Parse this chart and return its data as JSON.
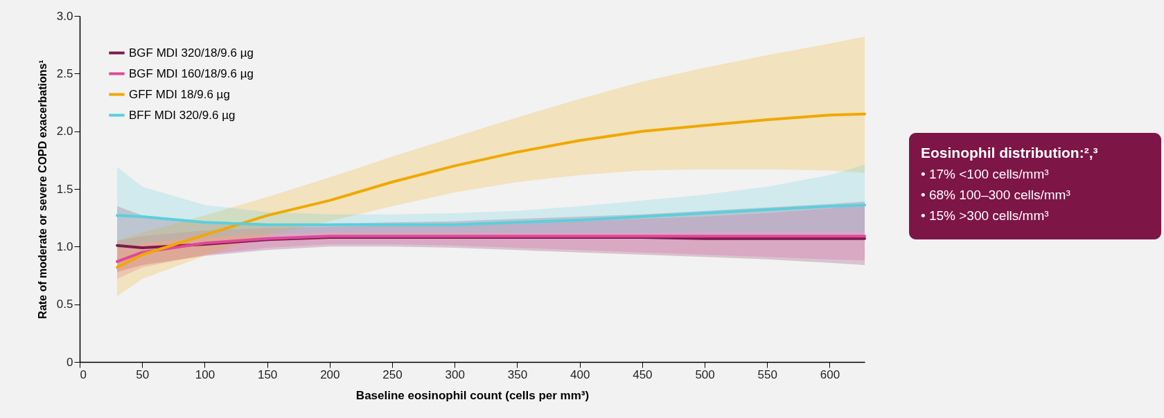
{
  "chart_data": {
    "type": "line",
    "xlabel": "Baseline eosinophil count (cells per mm³)",
    "ylabel": "Rate of moderate or severe COPD exacerbations¹",
    "x": [
      30,
      50,
      100,
      150,
      200,
      250,
      300,
      350,
      400,
      450,
      500,
      550,
      600,
      628
    ],
    "series": [
      {
        "name": "BGF MDI 320/18/9.6 µg",
        "color": "#7d1a4d",
        "values": [
          1.01,
          0.99,
          1.02,
          1.06,
          1.08,
          1.08,
          1.08,
          1.08,
          1.08,
          1.08,
          1.07,
          1.07,
          1.07,
          1.07
        ],
        "lower": [
          0.78,
          0.84,
          0.92,
          0.97,
          1.0,
          1.0,
          0.99,
          0.97,
          0.95,
          0.93,
          0.91,
          0.89,
          0.86,
          0.84
        ],
        "upper": [
          1.35,
          1.27,
          1.22,
          1.2,
          1.2,
          1.21,
          1.22,
          1.24,
          1.26,
          1.28,
          1.31,
          1.34,
          1.37,
          1.39
        ]
      },
      {
        "name": "BGF MDI 160/18/9.6 µg",
        "color": "#e0489a",
        "values": [
          0.87,
          0.95,
          1.03,
          1.07,
          1.09,
          1.09,
          1.09,
          1.09,
          1.09,
          1.09,
          1.09,
          1.09,
          1.09,
          1.09
        ],
        "lower": [
          0.72,
          0.82,
          0.93,
          0.99,
          1.02,
          1.02,
          1.01,
          0.99,
          0.97,
          0.95,
          0.93,
          0.91,
          0.89,
          0.88
        ],
        "upper": [
          1.05,
          1.09,
          1.14,
          1.16,
          1.17,
          1.18,
          1.19,
          1.2,
          1.22,
          1.24,
          1.26,
          1.29,
          1.33,
          1.37
        ]
      },
      {
        "name": "GFF MDI 18/9.6 µg",
        "color": "#f0a800",
        "values": [
          0.82,
          0.93,
          1.1,
          1.27,
          1.4,
          1.56,
          1.7,
          1.82,
          1.92,
          2.0,
          2.05,
          2.1,
          2.14,
          2.15
        ],
        "lower": [
          0.57,
          0.72,
          0.92,
          1.1,
          1.22,
          1.35,
          1.47,
          1.56,
          1.62,
          1.66,
          1.67,
          1.67,
          1.66,
          1.64
        ],
        "upper": [
          1.05,
          1.12,
          1.27,
          1.43,
          1.6,
          1.78,
          1.95,
          2.12,
          2.28,
          2.43,
          2.55,
          2.66,
          2.76,
          2.82
        ]
      },
      {
        "name": "BFF MDI 320/9.6 µg",
        "color": "#5bcfdc",
        "values": [
          1.27,
          1.26,
          1.21,
          1.19,
          1.19,
          1.19,
          1.19,
          1.21,
          1.23,
          1.26,
          1.29,
          1.32,
          1.35,
          1.36
        ],
        "lower": [
          0.98,
          1.03,
          1.08,
          1.11,
          1.12,
          1.12,
          1.12,
          1.12,
          1.12,
          1.12,
          1.12,
          1.12,
          1.12,
          1.12
        ],
        "upper": [
          1.69,
          1.52,
          1.36,
          1.3,
          1.28,
          1.28,
          1.29,
          1.31,
          1.35,
          1.4,
          1.45,
          1.52,
          1.62,
          1.71
        ]
      }
    ],
    "xlim": [
      0,
      628
    ],
    "xticks": [
      0,
      50,
      100,
      150,
      200,
      250,
      300,
      350,
      400,
      450,
      500,
      550,
      600
    ],
    "ylim": [
      0,
      3.0
    ],
    "yticks": [
      0,
      {
        "value": 0.5,
        "label": "0.5"
      },
      {
        "value": 1,
        "label": "1.0"
      },
      {
        "value": 1.5,
        "label": "1.5"
      },
      {
        "value": 2,
        "label": "2.0"
      },
      {
        "value": 2.5,
        "label": "2.5"
      },
      {
        "value": 3,
        "label": "3.0"
      }
    ],
    "grid": false,
    "legend": "top left",
    "marker": "none",
    "line_style": "solid",
    "annotations": [
      "Eosinophil distribution:²,³",
      "•  17% <100 cells/mm³",
      "•  68% 100–300 cells/mm³",
      "•  15% >300 cells/mm³"
    ]
  }
}
